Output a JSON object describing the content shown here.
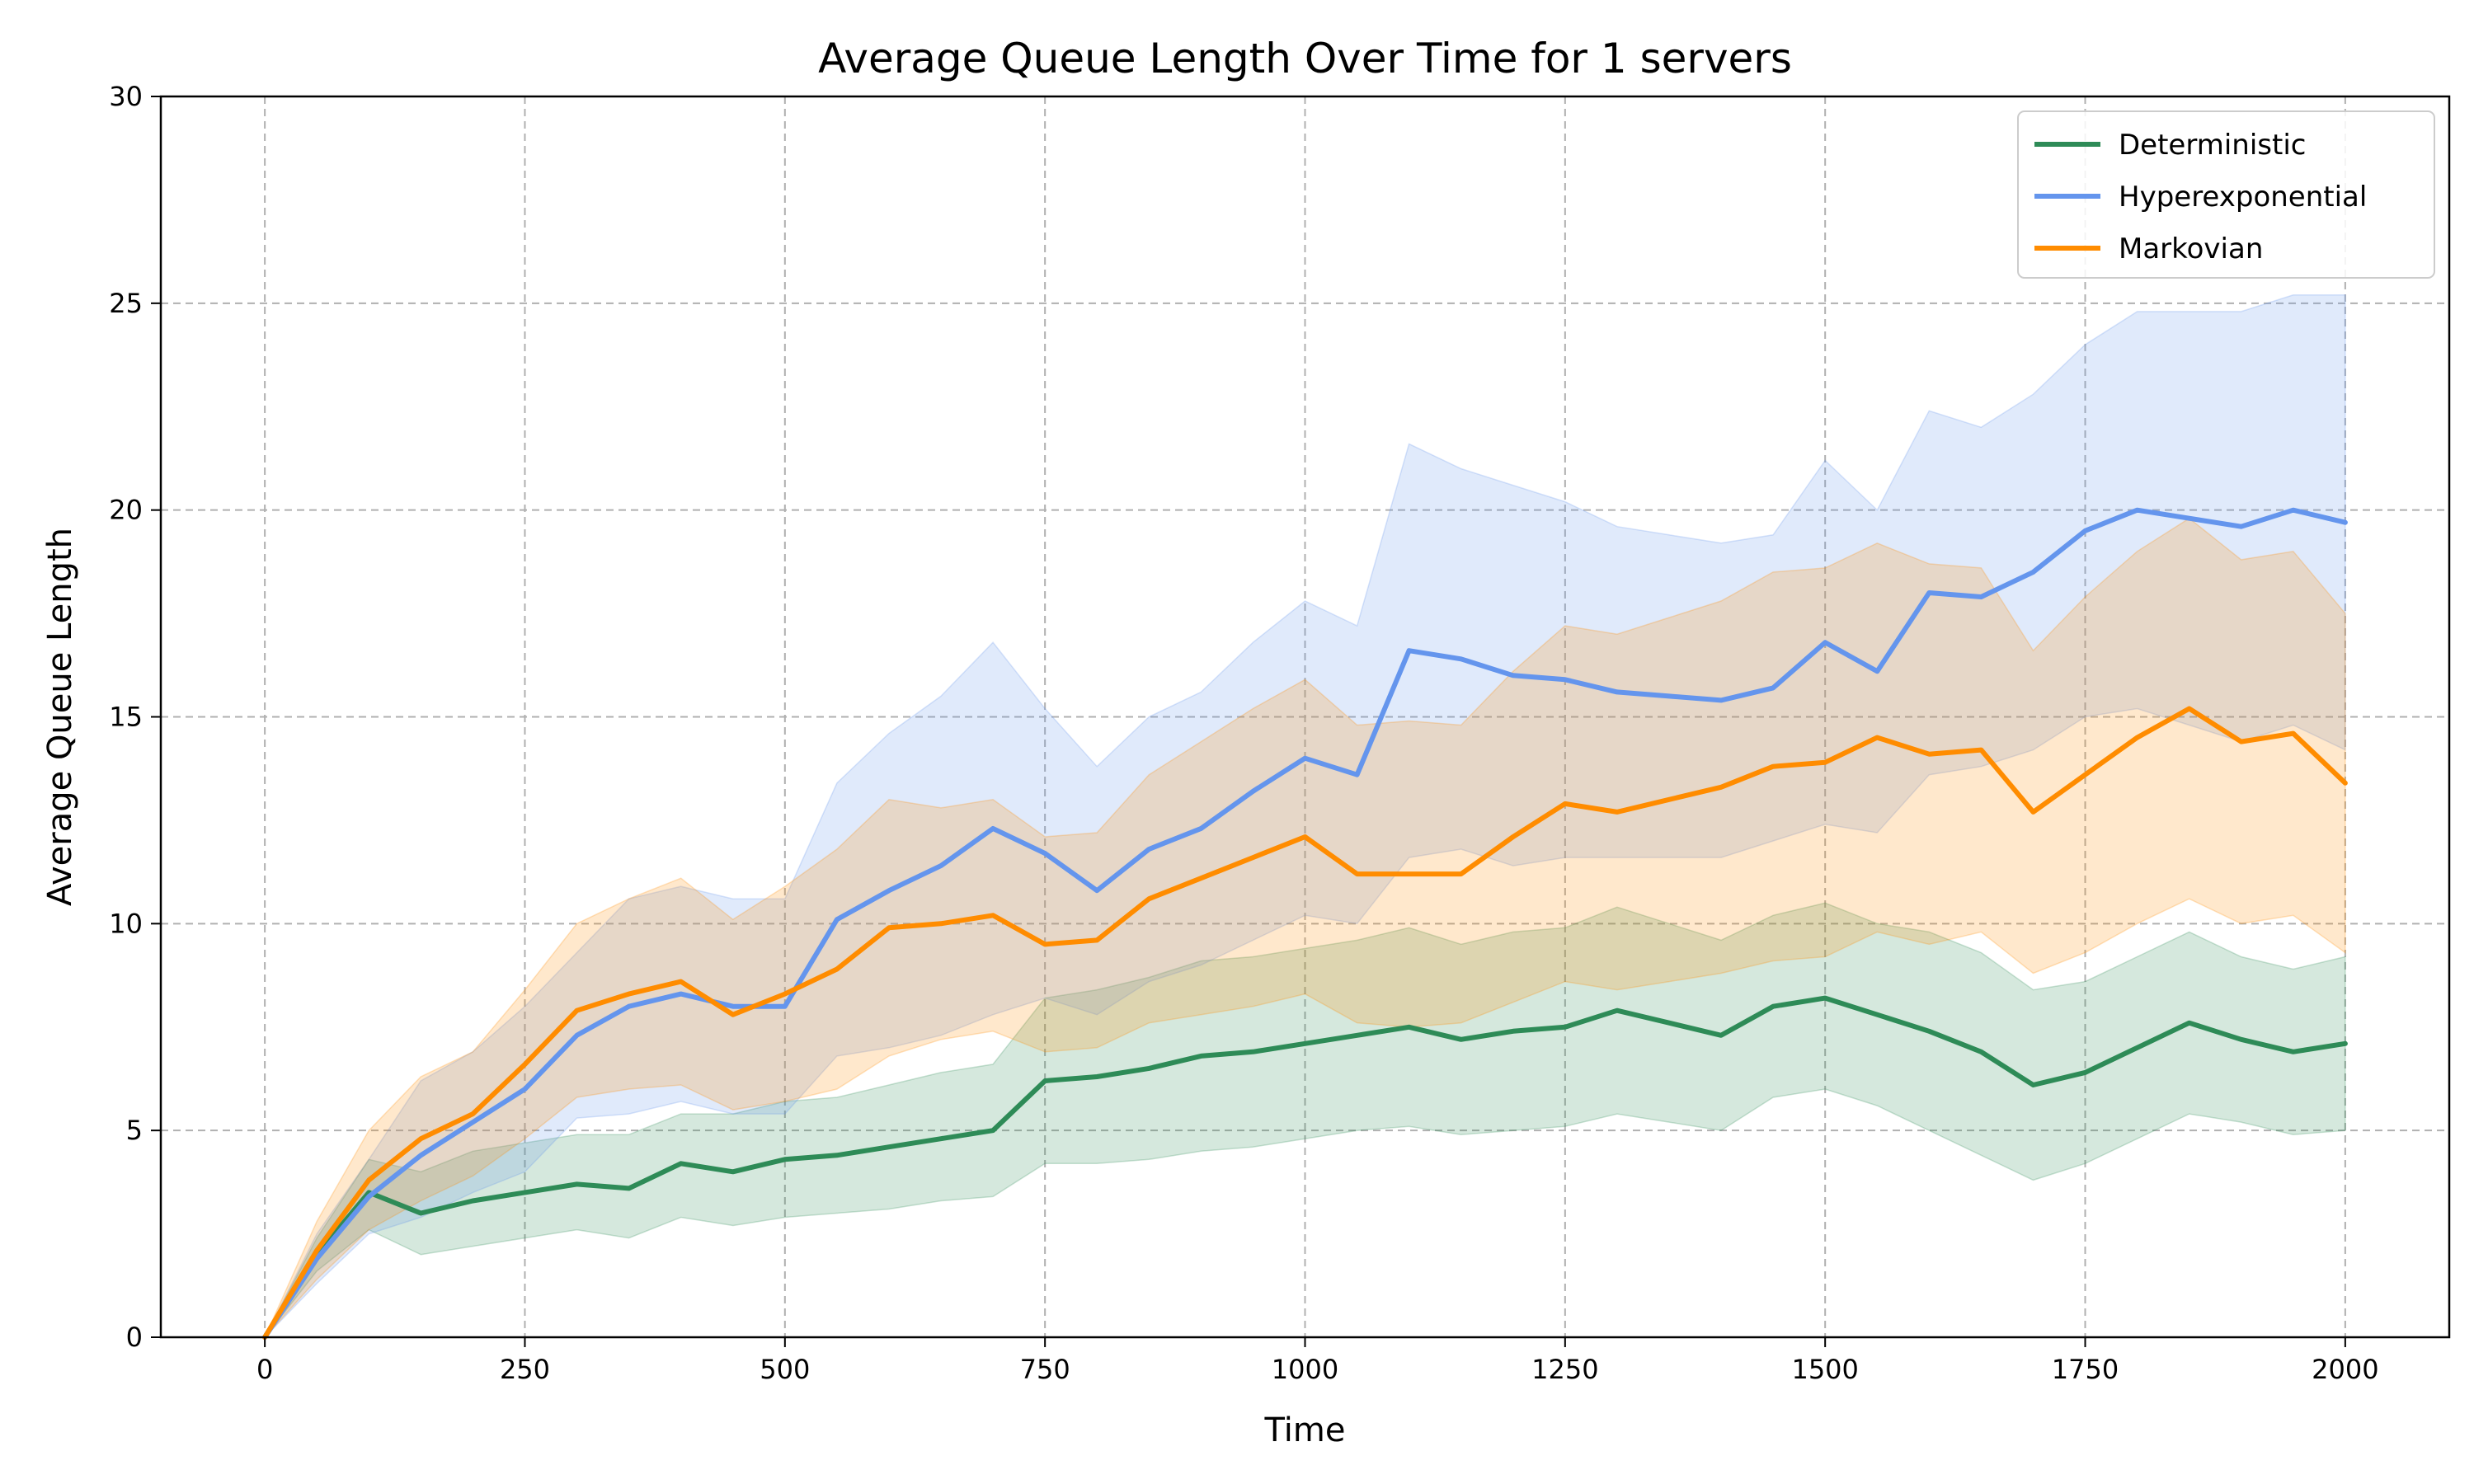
{
  "chart_data": {
    "type": "line",
    "title": "Average Queue Length Over Time for 1 servers",
    "xlabel": "Time",
    "ylabel": "Average Queue Length",
    "xlim": [
      -100,
      2100
    ],
    "ylim": [
      0,
      30
    ],
    "x_ticks": [
      "0",
      "250",
      "500",
      "750",
      "1000",
      "1250",
      "1500",
      "1750",
      "2000"
    ],
    "y_ticks": [
      "0",
      "5",
      "10",
      "15",
      "20",
      "25",
      "30"
    ],
    "grid": true,
    "legend_position": "top-right",
    "x": [
      0,
      50,
      100,
      150,
      200,
      250,
      300,
      350,
      400,
      450,
      500,
      550,
      600,
      650,
      700,
      750,
      800,
      850,
      900,
      950,
      1000,
      1050,
      1100,
      1150,
      1200,
      1250,
      1300,
      1350,
      1400,
      1450,
      1500,
      1550,
      1600,
      1650,
      1700,
      1750,
      1800,
      1850,
      1900,
      1950,
      2000
    ],
    "series": [
      {
        "name": "Deterministic",
        "color": "#2e8b57",
        "values": [
          0,
          2.0,
          3.5,
          3.0,
          3.3,
          3.5,
          3.7,
          3.6,
          4.2,
          4.0,
          4.3,
          4.4,
          4.6,
          4.8,
          5.0,
          6.2,
          6.3,
          6.5,
          6.8,
          6.9,
          7.1,
          7.3,
          7.5,
          7.2,
          7.4,
          7.5,
          7.9,
          7.6,
          7.3,
          8.0,
          8.2,
          7.8,
          7.4,
          6.9,
          6.1,
          6.4,
          7.0,
          7.6,
          7.2,
          6.9,
          7.1
        ],
        "lower": [
          0,
          1.6,
          2.6,
          2.0,
          2.2,
          2.4,
          2.6,
          2.4,
          2.9,
          2.7,
          2.9,
          3.0,
          3.1,
          3.3,
          3.4,
          4.2,
          4.2,
          4.3,
          4.5,
          4.6,
          4.8,
          5.0,
          5.1,
          4.9,
          5.0,
          5.1,
          5.4,
          5.2,
          5.0,
          5.8,
          6.0,
          5.6,
          5.0,
          4.4,
          3.8,
          4.2,
          4.8,
          5.4,
          5.2,
          4.9,
          5.0
        ],
        "upper": [
          0,
          2.4,
          4.3,
          4.0,
          4.5,
          4.7,
          4.9,
          4.9,
          5.4,
          5.4,
          5.7,
          5.8,
          6.1,
          6.4,
          6.6,
          8.2,
          8.4,
          8.7,
          9.1,
          9.2,
          9.4,
          9.6,
          9.9,
          9.5,
          9.8,
          9.9,
          10.4,
          10.0,
          9.6,
          10.2,
          10.5,
          10.0,
          9.8,
          9.3,
          8.4,
          8.6,
          9.2,
          9.8,
          9.2,
          8.9,
          9.2
        ]
      },
      {
        "name": "Hyperexponential",
        "color": "#6495ed",
        "values": [
          0,
          1.9,
          3.4,
          4.4,
          5.2,
          6.0,
          7.3,
          8.0,
          8.3,
          8.0,
          8.0,
          10.1,
          10.8,
          11.4,
          12.3,
          11.7,
          10.8,
          11.8,
          12.3,
          13.2,
          14.0,
          13.6,
          16.6,
          16.4,
          16.0,
          15.9,
          15.6,
          15.5,
          15.4,
          15.7,
          16.8,
          16.1,
          18.0,
          17.9,
          18.5,
          19.5,
          20.0,
          19.8,
          19.6,
          20.0,
          19.7
        ],
        "lower": [
          0,
          1.3,
          2.5,
          2.9,
          3.5,
          4.0,
          5.3,
          5.4,
          5.7,
          5.4,
          5.4,
          6.8,
          7.0,
          7.3,
          7.8,
          8.2,
          7.8,
          8.6,
          9.0,
          9.6,
          10.2,
          10.0,
          11.6,
          11.8,
          11.4,
          11.6,
          11.6,
          11.6,
          11.6,
          12.0,
          12.4,
          12.2,
          13.6,
          13.8,
          14.2,
          15.0,
          15.2,
          14.8,
          14.4,
          14.8,
          14.2
        ],
        "upper": [
          0,
          2.5,
          4.3,
          6.2,
          6.9,
          8.0,
          9.3,
          10.6,
          10.9,
          10.6,
          10.6,
          13.4,
          14.6,
          15.5,
          16.8,
          15.2,
          13.8,
          15.0,
          15.6,
          16.8,
          17.8,
          17.2,
          21.6,
          21.0,
          20.6,
          20.2,
          19.6,
          19.4,
          19.2,
          19.4,
          21.2,
          20.0,
          22.4,
          22.0,
          22.8,
          24.0,
          24.8,
          24.8,
          24.8,
          25.2,
          25.2
        ]
      },
      {
        "name": "Markovian",
        "color": "#ff8c00",
        "values": [
          0,
          2.1,
          3.8,
          4.8,
          5.4,
          6.6,
          7.9,
          8.3,
          8.6,
          7.8,
          8.3,
          8.9,
          9.9,
          10.0,
          10.2,
          9.5,
          9.6,
          10.6,
          11.1,
          11.6,
          12.1,
          11.2,
          11.2,
          11.2,
          12.1,
          12.9,
          12.7,
          13.0,
          13.3,
          13.8,
          13.9,
          14.5,
          14.1,
          14.2,
          12.7,
          13.6,
          14.5,
          15.2,
          14.4,
          14.6,
          13.4
        ],
        "lower": [
          0,
          1.4,
          2.6,
          3.3,
          3.9,
          4.8,
          5.8,
          6.0,
          6.1,
          5.5,
          5.7,
          6.0,
          6.8,
          7.2,
          7.4,
          6.9,
          7.0,
          7.6,
          7.8,
          8.0,
          8.3,
          7.6,
          7.5,
          7.6,
          8.1,
          8.6,
          8.4,
          8.6,
          8.8,
          9.1,
          9.2,
          9.8,
          9.5,
          9.8,
          8.8,
          9.3,
          10.0,
          10.6,
          10.0,
          10.2,
          9.3
        ],
        "upper": [
          0,
          2.8,
          5.0,
          6.3,
          6.9,
          8.4,
          10.0,
          10.6,
          11.1,
          10.1,
          10.9,
          11.8,
          13.0,
          12.8,
          13.0,
          12.1,
          12.2,
          13.6,
          14.4,
          15.2,
          15.9,
          14.8,
          14.9,
          14.8,
          16.1,
          17.2,
          17.0,
          17.4,
          17.8,
          18.5,
          18.6,
          19.2,
          18.7,
          18.6,
          16.6,
          17.9,
          19.0,
          19.8,
          18.8,
          19.0,
          17.5
        ]
      }
    ]
  }
}
